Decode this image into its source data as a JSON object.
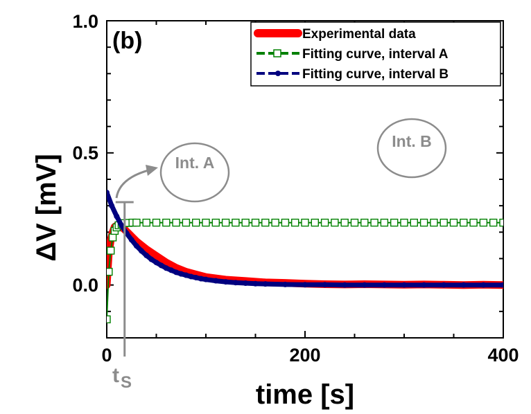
{
  "chart_data": {
    "type": "line",
    "panel_label": "(b)",
    "xlabel": "time [s]",
    "ylabel": "ΔV [mV]",
    "xlim": [
      0,
      400
    ],
    "ylim": [
      -0.2,
      1.0
    ],
    "x_ticks": [
      0,
      200,
      400
    ],
    "x_tick_labels": [
      "0",
      "200",
      "400"
    ],
    "y_ticks": [
      0.0,
      0.5,
      1.0
    ],
    "y_tick_labels": [
      "0.0",
      "0.5",
      "1.0"
    ],
    "legend_position": "top-right",
    "series": [
      {
        "name": "Experimental data",
        "color": "#ff0000",
        "style": "thick-line",
        "x": [
          0,
          2,
          4,
          6,
          8,
          10,
          12,
          15,
          18,
          22,
          26,
          30,
          35,
          40,
          50,
          60,
          70,
          80,
          90,
          100,
          110,
          120,
          140,
          160,
          180,
          200,
          220,
          240,
          260,
          280,
          300,
          320,
          340,
          360,
          380,
          400
        ],
        "y": [
          0.0,
          0.12,
          0.17,
          0.2,
          0.22,
          0.225,
          0.225,
          0.22,
          0.21,
          0.195,
          0.18,
          0.165,
          0.15,
          0.135,
          0.11,
          0.085,
          0.065,
          0.05,
          0.04,
          0.03,
          0.025,
          0.02,
          0.015,
          0.01,
          0.008,
          0.005,
          0.003,
          0.002,
          0.003,
          0.002,
          0.001,
          0.002,
          0.001,
          0.0,
          0.001,
          0.0
        ]
      },
      {
        "name": "Fitting curve, interval A",
        "color": "#008000",
        "style": "open-square",
        "x": [
          0,
          2,
          4,
          6,
          8,
          10,
          12,
          15,
          18,
          22,
          26,
          30,
          40,
          50,
          60,
          70,
          80,
          90,
          100,
          110,
          120,
          130,
          140,
          150,
          160,
          170,
          180,
          190,
          200,
          210,
          220,
          230,
          240,
          250,
          260,
          270,
          280,
          290,
          300,
          310,
          320,
          330,
          340,
          350,
          360,
          370,
          380,
          390,
          400
        ],
        "y": [
          -0.13,
          0.05,
          0.13,
          0.18,
          0.205,
          0.218,
          0.226,
          0.231,
          0.234,
          0.235,
          0.236,
          0.236,
          0.236,
          0.236,
          0.236,
          0.236,
          0.236,
          0.236,
          0.236,
          0.236,
          0.236,
          0.236,
          0.236,
          0.236,
          0.236,
          0.236,
          0.236,
          0.236,
          0.236,
          0.236,
          0.236,
          0.236,
          0.236,
          0.236,
          0.236,
          0.236,
          0.236,
          0.236,
          0.236,
          0.236,
          0.236,
          0.236,
          0.236,
          0.236,
          0.236,
          0.236,
          0.236,
          0.236,
          0.236
        ]
      },
      {
        "name": "Fitting curve, interval B",
        "color": "#00007f",
        "style": "filled-circle",
        "x": [
          0,
          5,
          10,
          15,
          20,
          25,
          30,
          35,
          40,
          45,
          50,
          55,
          60,
          65,
          70,
          75,
          80,
          85,
          90,
          95,
          100,
          110,
          120,
          130,
          140,
          150,
          160,
          180,
          200,
          220,
          240,
          260,
          280,
          300,
          320,
          340,
          360,
          380,
          400
        ],
        "y": [
          0.35,
          0.3,
          0.26,
          0.225,
          0.196,
          0.171,
          0.148,
          0.129,
          0.112,
          0.097,
          0.085,
          0.074,
          0.064,
          0.056,
          0.048,
          0.042,
          0.037,
          0.032,
          0.028,
          0.024,
          0.021,
          0.016,
          0.012,
          0.009,
          0.007,
          0.005,
          0.004,
          0.002,
          0.001,
          0.001,
          0.0,
          0.0,
          0.0,
          0.0,
          0.0,
          0.0,
          0.0,
          0.0,
          0.0
        ]
      }
    ],
    "annotations": {
      "int_a": "Int. A",
      "int_b": "Int. B",
      "ts_main": "t",
      "ts_sub": "S",
      "ts_x": 18
    }
  }
}
